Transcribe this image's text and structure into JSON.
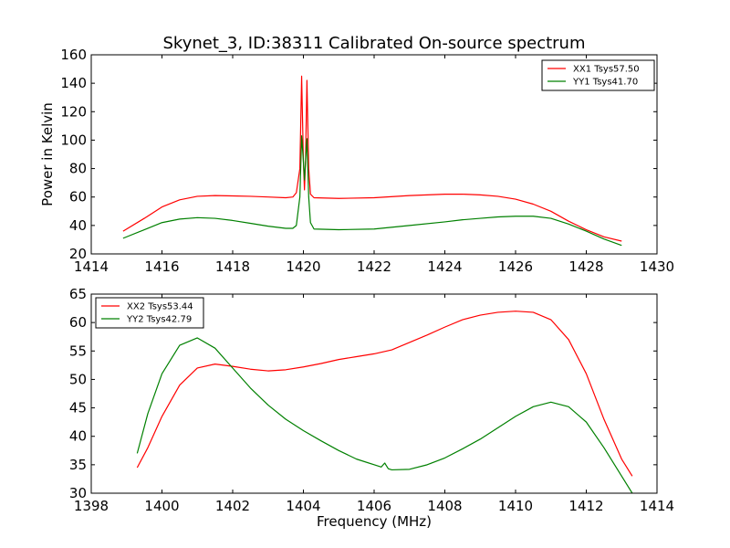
{
  "figure": {
    "title": "Skynet_3, ID:38311 Calibrated On-source spectrum",
    "xlabel": "Frequency (MHz)"
  },
  "colors": {
    "red": "#ff0000",
    "green": "#008000"
  },
  "chart_data": [
    {
      "type": "line",
      "title": "Skynet_3, ID:38311 Calibrated On-source spectrum",
      "xlabel": "",
      "ylabel": "Power in Kelvin",
      "xlim": [
        1414,
        1430
      ],
      "ylim": [
        20,
        160
      ],
      "xticks": [
        1414,
        1416,
        1418,
        1420,
        1422,
        1424,
        1426,
        1428,
        1430
      ],
      "yticks": [
        20,
        40,
        60,
        80,
        100,
        120,
        140,
        160
      ],
      "grid": false,
      "legend_position": "top-right",
      "series": [
        {
          "name": "XX1 Tsys57.50",
          "color": "#ff0000",
          "x": [
            1414.9,
            1415.5,
            1416,
            1416.5,
            1417,
            1417.5,
            1418,
            1418.5,
            1419,
            1419.5,
            1419.7,
            1419.8,
            1419.9,
            1419.95,
            1420,
            1420.03,
            1420.06,
            1420.1,
            1420.15,
            1420.2,
            1420.3,
            1421,
            1422,
            1423,
            1424,
            1424.5,
            1425,
            1425.5,
            1426,
            1426.5,
            1427,
            1427.5,
            1428,
            1428.5,
            1429
          ],
          "y": [
            36,
            45,
            53,
            58,
            60.5,
            61,
            60.8,
            60.5,
            60,
            59.5,
            60,
            63,
            80,
            145,
            85,
            65,
            85,
            142,
            80,
            62,
            59.5,
            59,
            59.5,
            61,
            62,
            62,
            61.5,
            60.5,
            58.5,
            55,
            50,
            43,
            37,
            32,
            29
          ]
        },
        {
          "name": "YY1 Tsys41.70",
          "color": "#008000",
          "x": [
            1414.9,
            1415.5,
            1416,
            1416.5,
            1417,
            1417.5,
            1418,
            1418.5,
            1419,
            1419.5,
            1419.7,
            1419.8,
            1419.9,
            1419.95,
            1420,
            1420.03,
            1420.06,
            1420.1,
            1420.15,
            1420.2,
            1420.3,
            1421,
            1422,
            1423,
            1424,
            1424.5,
            1425,
            1425.5,
            1426,
            1426.5,
            1427,
            1427.5,
            1428,
            1428.5,
            1429
          ],
          "y": [
            31,
            37,
            42,
            44.5,
            45.5,
            45,
            43.5,
            41.5,
            39.5,
            38,
            38,
            40,
            60,
            103,
            85,
            72,
            85,
            101,
            60,
            42,
            37.5,
            37,
            37.5,
            40,
            42.5,
            44,
            45,
            46,
            46.5,
            46.5,
            45,
            41,
            36,
            30.5,
            26
          ]
        }
      ]
    },
    {
      "type": "line",
      "title": "",
      "xlabel": "Frequency (MHz)",
      "ylabel": "",
      "xlim": [
        1398,
        1414
      ],
      "ylim": [
        30,
        65
      ],
      "xticks": [
        1398,
        1400,
        1402,
        1404,
        1406,
        1408,
        1410,
        1412,
        1414
      ],
      "yticks": [
        30,
        35,
        40,
        45,
        50,
        55,
        60,
        65
      ],
      "grid": false,
      "legend_position": "top-left",
      "series": [
        {
          "name": "XX2 Tsys53.44",
          "color": "#ff0000",
          "x": [
            1399.3,
            1399.6,
            1400,
            1400.5,
            1401,
            1401.5,
            1402,
            1402.5,
            1403,
            1403.5,
            1404,
            1404.5,
            1405,
            1405.5,
            1406,
            1406.5,
            1407,
            1407.5,
            1408,
            1408.5,
            1409,
            1409.5,
            1410,
            1410.5,
            1411,
            1411.5,
            1412,
            1412.5,
            1413,
            1413.3
          ],
          "y": [
            34.5,
            38,
            43.5,
            49,
            52,
            52.7,
            52.3,
            51.8,
            51.5,
            51.7,
            52.2,
            52.8,
            53.5,
            54,
            54.5,
            55.2,
            56.5,
            57.8,
            59.2,
            60.5,
            61.3,
            61.8,
            62,
            61.8,
            60.5,
            57,
            51,
            43,
            36,
            33
          ]
        },
        {
          "name": "YY2 Tsys42.79",
          "color": "#008000",
          "x": [
            1399.3,
            1399.6,
            1400,
            1400.5,
            1401,
            1401.5,
            1402,
            1402.5,
            1403,
            1403.5,
            1404,
            1404.5,
            1405,
            1405.5,
            1406,
            1406.2,
            1406.3,
            1406.4,
            1406.5,
            1407,
            1407.5,
            1408,
            1408.5,
            1409,
            1409.5,
            1410,
            1410.5,
            1411,
            1411.5,
            1412,
            1412.5,
            1413,
            1413.3
          ],
          "y": [
            37,
            44,
            51,
            56,
            57.3,
            55.5,
            52,
            48.5,
            45.5,
            43,
            41,
            39.2,
            37.5,
            36,
            35,
            34.6,
            35.3,
            34.3,
            34.1,
            34.2,
            35,
            36.2,
            37.8,
            39.5,
            41.5,
            43.5,
            45.2,
            46,
            45.2,
            42.5,
            38,
            33,
            30
          ]
        }
      ]
    }
  ]
}
